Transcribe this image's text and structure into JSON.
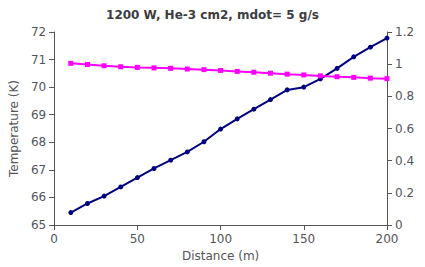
{
  "chart_data": {
    "type": "line",
    "title": "1200 W, He-3 cm2, mdot= 5 g/s",
    "xlabel": "Distance (m)",
    "ylabel": "Temperature (K)",
    "x": [
      10,
      20,
      30,
      40,
      50,
      60,
      70,
      80,
      90,
      100,
      110,
      120,
      130,
      140,
      150,
      160,
      170,
      180,
      190,
      200
    ],
    "series": [
      {
        "color": "#000080",
        "marker": "circle",
        "values": [
          65.45,
          65.78,
          66.05,
          66.38,
          66.72,
          67.05,
          67.35,
          67.65,
          68.02,
          68.48,
          68.85,
          69.2,
          69.55,
          69.9,
          70.0,
          70.3,
          70.68,
          71.1,
          71.45,
          71.78
        ]
      },
      {
        "color": "#FF00FF",
        "marker": "square",
        "axis": "y2",
        "values": [
          1.005,
          0.998,
          0.99,
          0.984,
          0.98,
          0.977,
          0.974,
          0.97,
          0.966,
          0.961,
          0.955,
          0.95,
          0.944,
          0.938,
          0.933,
          0.927,
          0.922,
          0.918,
          0.913,
          0.91
        ]
      }
    ],
    "xlim": [
      0,
      200
    ],
    "xticks": [
      0,
      50,
      100,
      150,
      200
    ],
    "ylim": [
      65,
      72
    ],
    "yticks": [
      65,
      66,
      67,
      68,
      69,
      70,
      71,
      72
    ],
    "y2lim": [
      0,
      1.2
    ],
    "y2ticks": [
      0,
      0.2,
      0.4,
      0.6,
      0.8,
      1,
      1.2
    ],
    "grid": false
  }
}
